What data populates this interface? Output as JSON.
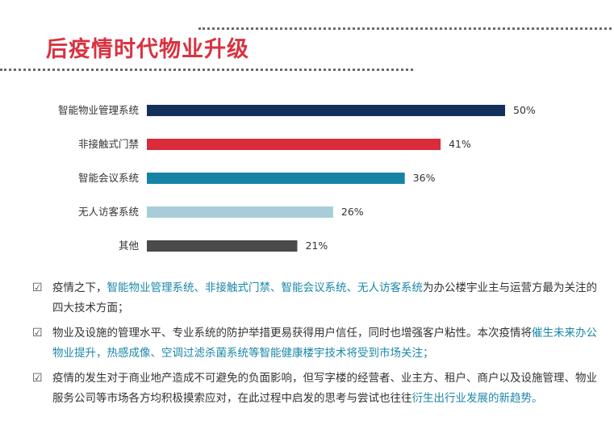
{
  "title": "后疫情时代物业升级",
  "chart_data": {
    "type": "bar",
    "orientation": "horizontal",
    "categories": [
      "智能物业管理系统",
      "非接触式门禁",
      "智能会议系统",
      "无人访客系统",
      "其他"
    ],
    "values": [
      50,
      41,
      36,
      26,
      21
    ],
    "value_labels": [
      "50%",
      "41%",
      "36%",
      "26%",
      "21%"
    ],
    "colors": [
      "#13305a",
      "#d92b3a",
      "#1683a6",
      "#a8cdd9",
      "#4a4a4a"
    ],
    "xlim": [
      0,
      50
    ]
  },
  "bullets": [
    {
      "icon": "checkbox-icon",
      "icon_glyph": "☑",
      "segments": [
        {
          "text": "疫情之下，",
          "hl": false
        },
        {
          "text": "智能物业管理系统、非接触式门禁、智能会议系统、无人访客系统",
          "hl": true
        },
        {
          "text": "为办公楼宇业主与运营方最为关注的四大技术方面；",
          "hl": false
        }
      ]
    },
    {
      "icon": "checkbox-icon",
      "icon_glyph": "☑",
      "segments": [
        {
          "text": "物业及设施的管理水平、专业系统的防护举措更易获得用户信任，同时也增强客户粘性。本次疫情将",
          "hl": false
        },
        {
          "text": "催生未来办公物业提升，热感成像、空调过滤杀菌系统等智能健康楼宇技术将受到市场关注；",
          "hl": true
        }
      ]
    },
    {
      "icon": "checkbox-icon",
      "icon_glyph": "☑",
      "segments": [
        {
          "text": "疫情的发生对于商业地产造成不可避免的负面影响，但写字楼的经营者、业主方、租户、商户以及设施管理、物业服务公司等市场各方均积极摸索应对，在此过程中启发的思考与尝试也往往",
          "hl": false
        },
        {
          "text": "衍生出行业发展的新趋势。",
          "hl": true
        }
      ]
    }
  ]
}
